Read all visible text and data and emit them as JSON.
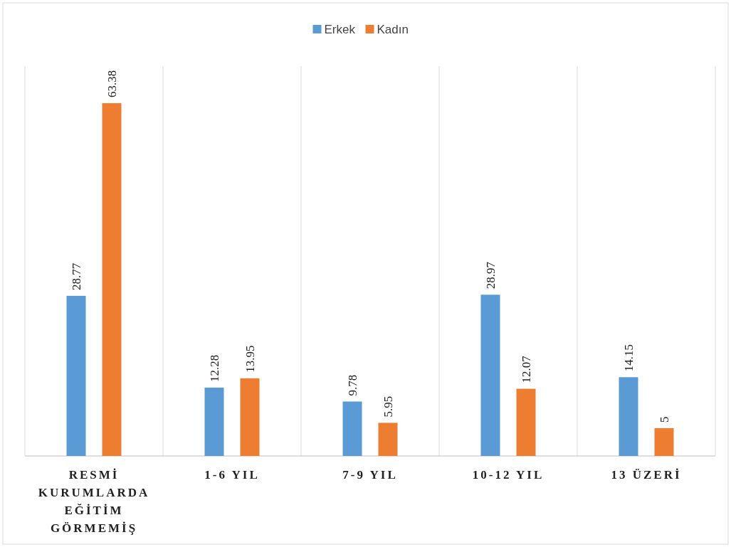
{
  "chart_data": {
    "type": "bar",
    "categories": [
      "RESMİ KURUMLARDA EĞİTİM GÖRMEMİŞ",
      "1-6 YIL",
      "7-9 YIL",
      "10-12 YIL",
      "13 ÜZERİ"
    ],
    "series": [
      {
        "name": "Erkek",
        "color": "#5b9bd5",
        "values": [
          28.77,
          12.28,
          9.78,
          28.97,
          14.15
        ]
      },
      {
        "name": "Kadın",
        "color": "#ed7d31",
        "values": [
          63.38,
          13.95,
          5.95,
          12.07,
          5
        ]
      }
    ],
    "data_labels": true,
    "grid": "x",
    "legend": "top"
  }
}
